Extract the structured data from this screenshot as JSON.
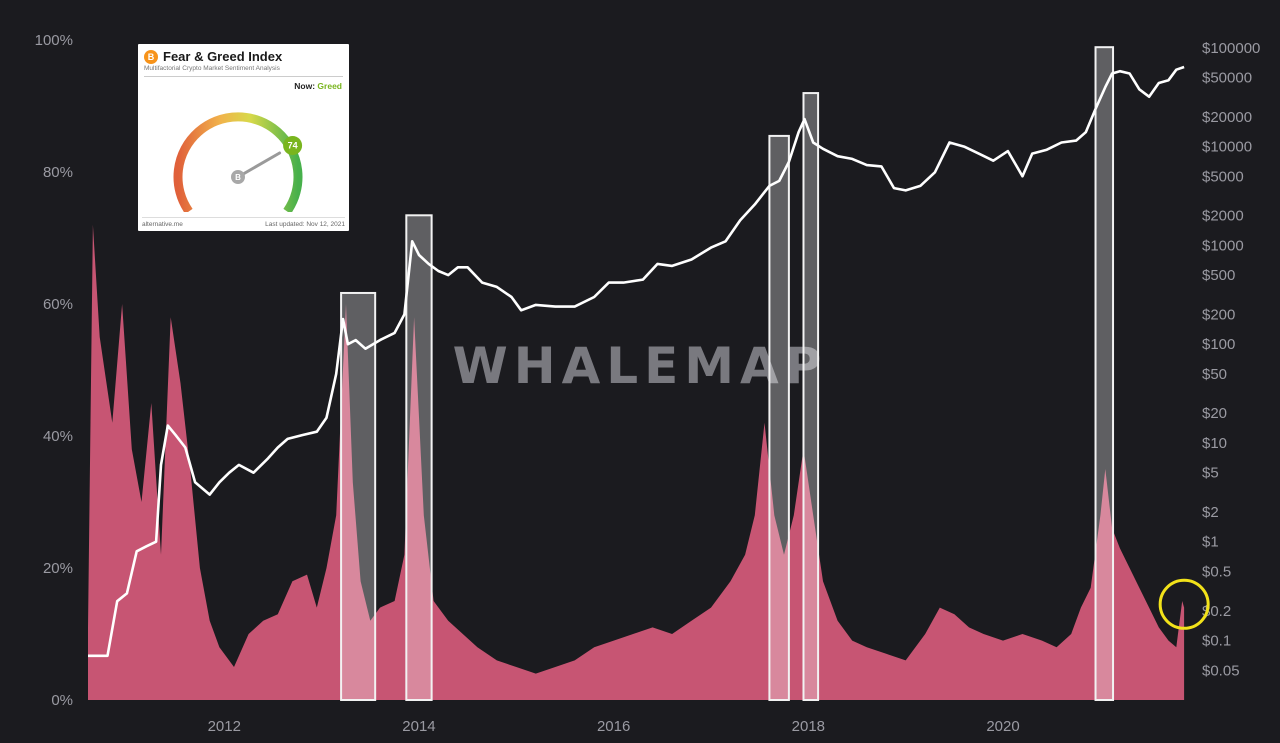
{
  "watermark": "WHALEMAP",
  "chart_data": {
    "type": "area",
    "title": "",
    "xlabel": "",
    "x_ticks": [
      "2012",
      "2014",
      "2016",
      "2018",
      "2020"
    ],
    "xlim": [
      2010.6,
      2021.9
    ],
    "left_axis": {
      "ticks": [
        "0%",
        "20%",
        "40%",
        "60%",
        "80%",
        "100%"
      ],
      "ylim": [
        0,
        100
      ]
    },
    "right_axis": {
      "scale": "log",
      "ticks": [
        "$0.05",
        "$0.1",
        "$0.2",
        "$0.5",
        "$1",
        "$2",
        "$5",
        "$10",
        "$20",
        "$50",
        "$100",
        "$200",
        "$500",
        "$1000",
        "$2000",
        "$5000",
        "$10000",
        "$20000",
        "$50000",
        "$100000"
      ],
      "ylim": [
        0.025,
        120000
      ]
    },
    "series": [
      {
        "axis": "left",
        "color": "#c75573",
        "points": [
          [
            2010.6,
            11
          ],
          [
            2010.65,
            72
          ],
          [
            2010.72,
            55
          ],
          [
            2010.85,
            42
          ],
          [
            2010.95,
            60
          ],
          [
            2011.05,
            38
          ],
          [
            2011.15,
            30
          ],
          [
            2011.25,
            45
          ],
          [
            2011.35,
            22
          ],
          [
            2011.45,
            58
          ],
          [
            2011.55,
            48
          ],
          [
            2011.65,
            35
          ],
          [
            2011.75,
            20
          ],
          [
            2011.85,
            12
          ],
          [
            2011.95,
            8
          ],
          [
            2012.1,
            5
          ],
          [
            2012.25,
            10
          ],
          [
            2012.4,
            12
          ],
          [
            2012.55,
            13
          ],
          [
            2012.7,
            18
          ],
          [
            2012.85,
            19
          ],
          [
            2012.95,
            14
          ],
          [
            2013.05,
            20
          ],
          [
            2013.15,
            28
          ],
          [
            2013.25,
            60
          ],
          [
            2013.32,
            33
          ],
          [
            2013.4,
            18
          ],
          [
            2013.5,
            12
          ],
          [
            2013.6,
            14
          ],
          [
            2013.75,
            15
          ],
          [
            2013.85,
            22
          ],
          [
            2013.95,
            58
          ],
          [
            2014.05,
            28
          ],
          [
            2014.15,
            15
          ],
          [
            2014.3,
            12
          ],
          [
            2014.45,
            10
          ],
          [
            2014.6,
            8
          ],
          [
            2014.8,
            6
          ],
          [
            2015.0,
            5
          ],
          [
            2015.2,
            4
          ],
          [
            2015.4,
            5
          ],
          [
            2015.6,
            6
          ],
          [
            2015.8,
            8
          ],
          [
            2016.0,
            9
          ],
          [
            2016.2,
            10
          ],
          [
            2016.4,
            11
          ],
          [
            2016.6,
            10
          ],
          [
            2016.8,
            12
          ],
          [
            2017.0,
            14
          ],
          [
            2017.2,
            18
          ],
          [
            2017.35,
            22
          ],
          [
            2017.45,
            28
          ],
          [
            2017.55,
            42
          ],
          [
            2017.65,
            28
          ],
          [
            2017.75,
            22
          ],
          [
            2017.85,
            28
          ],
          [
            2017.95,
            38
          ],
          [
            2018.05,
            28
          ],
          [
            2018.15,
            18
          ],
          [
            2018.3,
            12
          ],
          [
            2018.45,
            9
          ],
          [
            2018.6,
            8
          ],
          [
            2018.8,
            7
          ],
          [
            2019.0,
            6
          ],
          [
            2019.2,
            10
          ],
          [
            2019.35,
            14
          ],
          [
            2019.5,
            13
          ],
          [
            2019.65,
            11
          ],
          [
            2019.8,
            10
          ],
          [
            2020.0,
            9
          ],
          [
            2020.2,
            10
          ],
          [
            2020.4,
            9
          ],
          [
            2020.55,
            8
          ],
          [
            2020.7,
            10
          ],
          [
            2020.8,
            14
          ],
          [
            2020.9,
            17
          ],
          [
            2021.0,
            28
          ],
          [
            2021.05,
            35
          ],
          [
            2021.12,
            26
          ],
          [
            2021.2,
            23
          ],
          [
            2021.3,
            20
          ],
          [
            2021.4,
            17
          ],
          [
            2021.5,
            14
          ],
          [
            2021.6,
            11
          ],
          [
            2021.7,
            9
          ],
          [
            2021.78,
            8
          ],
          [
            2021.84,
            15
          ],
          [
            2021.86,
            14
          ]
        ]
      },
      {
        "axis": "right",
        "color": "#ffffff",
        "points": [
          [
            2010.6,
            0.07
          ],
          [
            2010.8,
            0.07
          ],
          [
            2010.9,
            0.25
          ],
          [
            2011.0,
            0.3
          ],
          [
            2011.1,
            0.8
          ],
          [
            2011.2,
            0.9
          ],
          [
            2011.3,
            1.0
          ],
          [
            2011.35,
            6
          ],
          [
            2011.42,
            15
          ],
          [
            2011.5,
            12
          ],
          [
            2011.6,
            9
          ],
          [
            2011.7,
            4
          ],
          [
            2011.85,
            3
          ],
          [
            2011.95,
            4
          ],
          [
            2012.05,
            5
          ],
          [
            2012.15,
            6
          ],
          [
            2012.3,
            5
          ],
          [
            2012.45,
            7
          ],
          [
            2012.55,
            9
          ],
          [
            2012.65,
            11
          ],
          [
            2012.8,
            12
          ],
          [
            2012.95,
            13
          ],
          [
            2013.05,
            18
          ],
          [
            2013.15,
            50
          ],
          [
            2013.22,
            180
          ],
          [
            2013.27,
            100
          ],
          [
            2013.35,
            110
          ],
          [
            2013.45,
            90
          ],
          [
            2013.6,
            110
          ],
          [
            2013.75,
            130
          ],
          [
            2013.85,
            200
          ],
          [
            2013.93,
            1100
          ],
          [
            2014.0,
            800
          ],
          [
            2014.1,
            650
          ],
          [
            2014.2,
            550
          ],
          [
            2014.3,
            500
          ],
          [
            2014.4,
            600
          ],
          [
            2014.5,
            600
          ],
          [
            2014.65,
            420
          ],
          [
            2014.8,
            380
          ],
          [
            2014.95,
            300
          ],
          [
            2015.05,
            220
          ],
          [
            2015.2,
            250
          ],
          [
            2015.4,
            240
          ],
          [
            2015.6,
            240
          ],
          [
            2015.8,
            300
          ],
          [
            2015.95,
            420
          ],
          [
            2016.1,
            420
          ],
          [
            2016.3,
            450
          ],
          [
            2016.45,
            650
          ],
          [
            2016.6,
            620
          ],
          [
            2016.8,
            720
          ],
          [
            2017.0,
            950
          ],
          [
            2017.15,
            1100
          ],
          [
            2017.3,
            1800
          ],
          [
            2017.45,
            2600
          ],
          [
            2017.6,
            4000
          ],
          [
            2017.7,
            4500
          ],
          [
            2017.8,
            7000
          ],
          [
            2017.9,
            14000
          ],
          [
            2017.96,
            19000
          ],
          [
            2018.05,
            11000
          ],
          [
            2018.15,
            9500
          ],
          [
            2018.3,
            8000
          ],
          [
            2018.45,
            7500
          ],
          [
            2018.6,
            6500
          ],
          [
            2018.75,
            6300
          ],
          [
            2018.88,
            3800
          ],
          [
            2019.0,
            3600
          ],
          [
            2019.15,
            4000
          ],
          [
            2019.3,
            5500
          ],
          [
            2019.45,
            11000
          ],
          [
            2019.6,
            10000
          ],
          [
            2019.75,
            8500
          ],
          [
            2019.9,
            7200
          ],
          [
            2020.05,
            9000
          ],
          [
            2020.2,
            5000
          ],
          [
            2020.3,
            8500
          ],
          [
            2020.45,
            9300
          ],
          [
            2020.6,
            11000
          ],
          [
            2020.75,
            11500
          ],
          [
            2020.85,
            14000
          ],
          [
            2020.95,
            24000
          ],
          [
            2021.05,
            40000
          ],
          [
            2021.12,
            55000
          ],
          [
            2021.2,
            58000
          ],
          [
            2021.3,
            55000
          ],
          [
            2021.4,
            38000
          ],
          [
            2021.5,
            32000
          ],
          [
            2021.6,
            44000
          ],
          [
            2021.7,
            47000
          ],
          [
            2021.78,
            60000
          ],
          [
            2021.86,
            64000
          ]
        ]
      }
    ],
    "highlight_ranges": [
      [
        2013.2,
        2013.55
      ],
      [
        2013.87,
        2014.13
      ],
      [
        2017.6,
        2017.8
      ],
      [
        2017.95,
        2018.1
      ],
      [
        2020.95,
        2021.13
      ]
    ],
    "circle_annotation": {
      "x": 2021.84,
      "y_pct": 14.5,
      "color": "#f2e21a"
    }
  },
  "fear_greed_widget": {
    "title": "Fear & Greed Index",
    "subtitle": "Multifactorial Crypto Market Sentiment Analysis",
    "now_label": "Now:",
    "classification": "Greed",
    "value": 74,
    "coin_symbol": "B",
    "source": "alternative.me",
    "last_updated": "Last updated: Nov 12, 2021"
  }
}
